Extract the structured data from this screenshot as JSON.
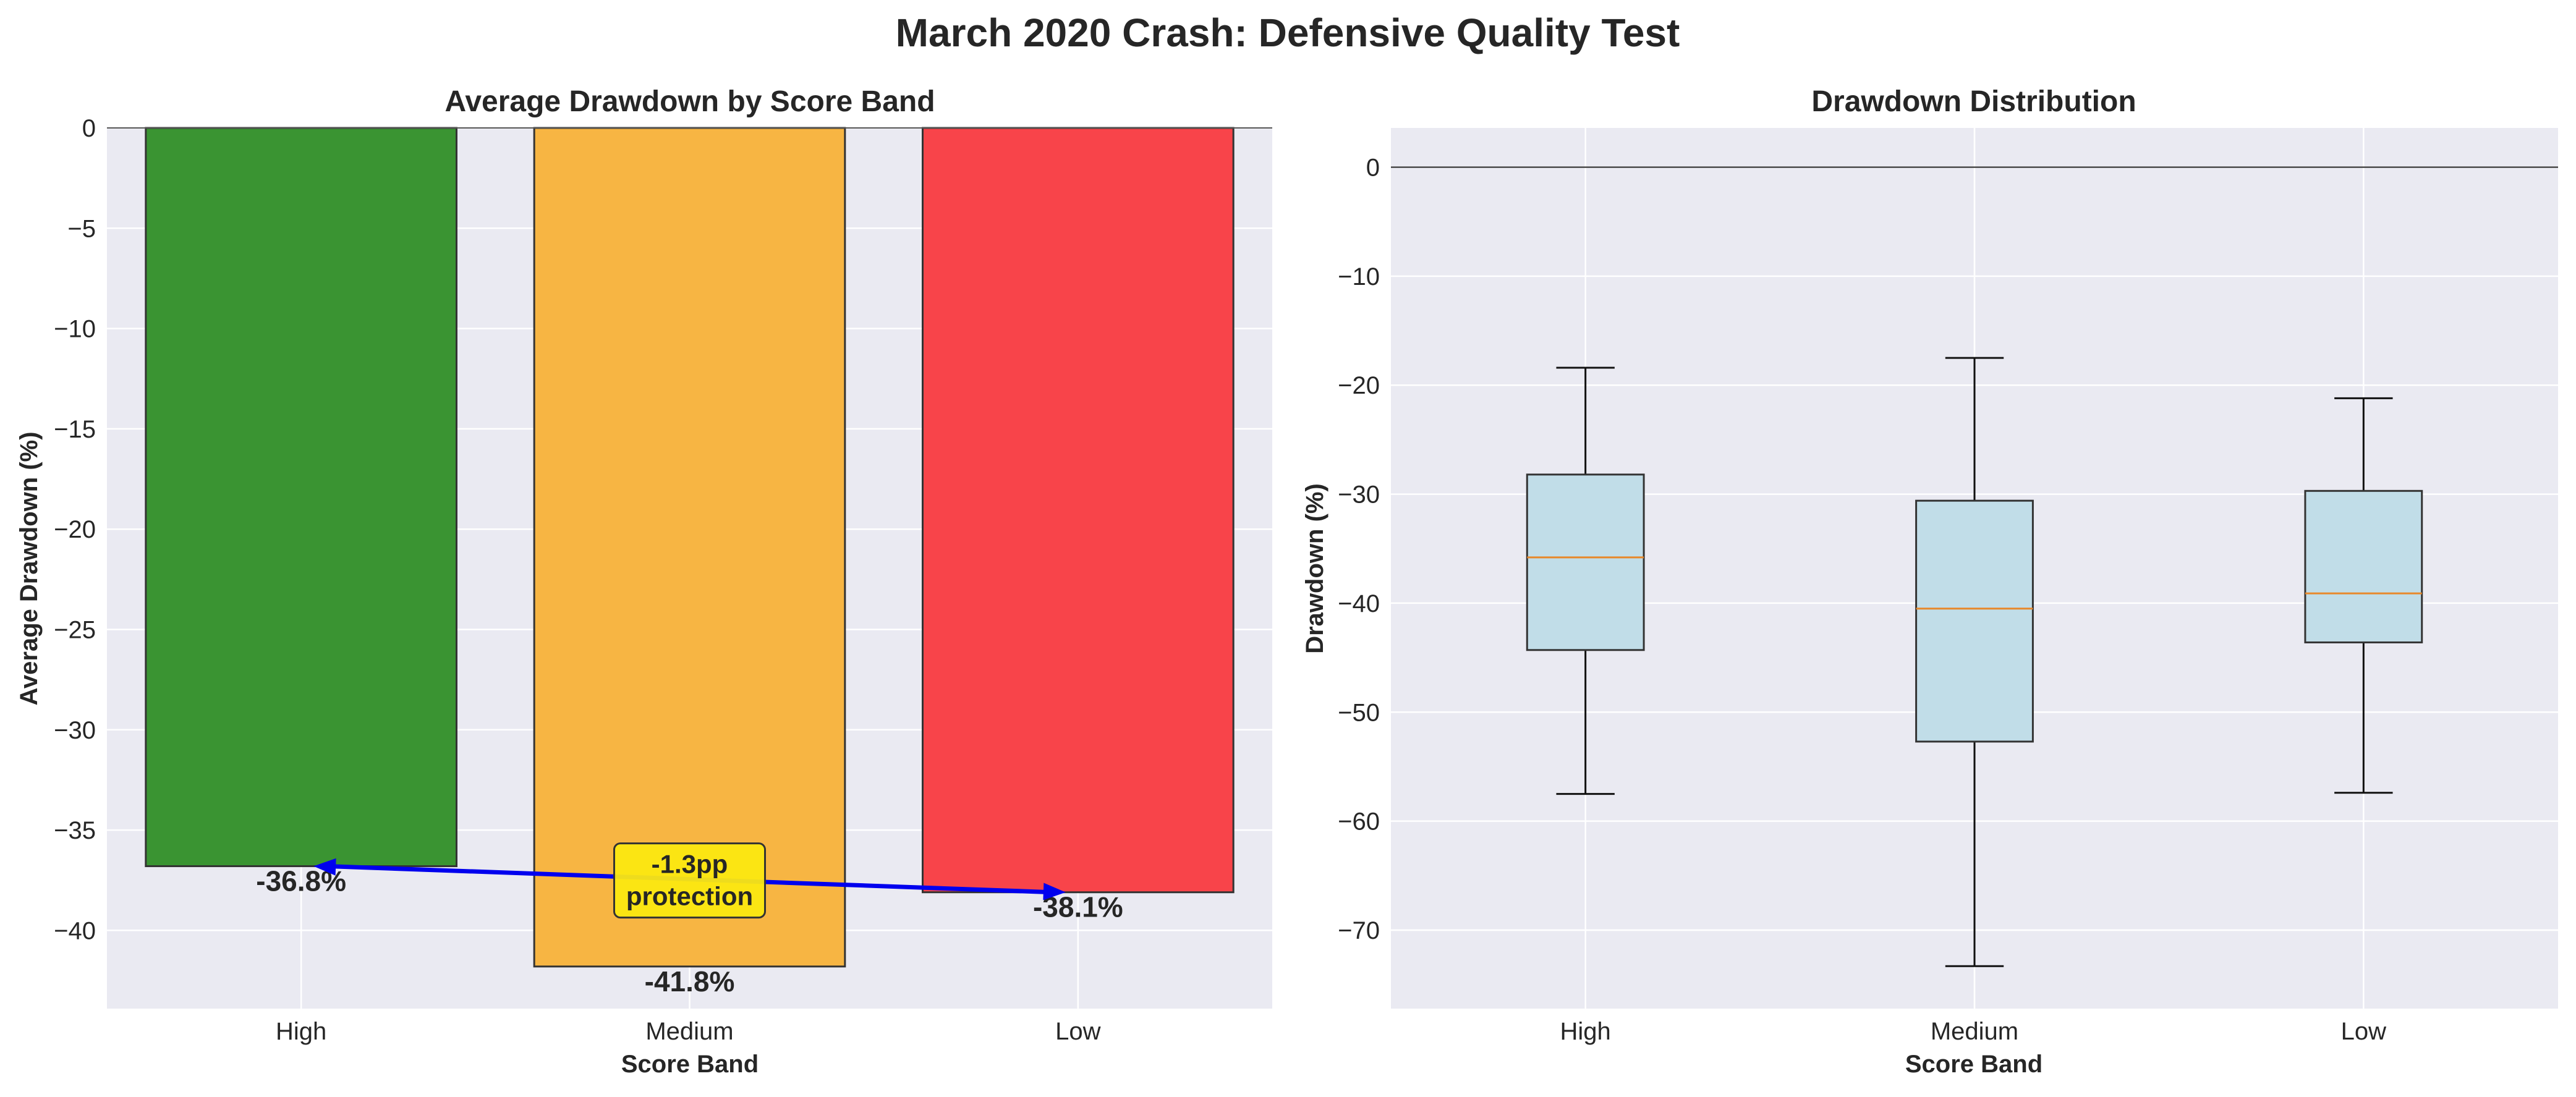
{
  "figure_title": "March 2020 Crash: Defensive Quality Test",
  "colors": {
    "panel_bg": "#eaeaf2",
    "grid": "#ffffff",
    "high": "#3a9432",
    "medium": "#f7b543",
    "low": "#f8444a",
    "box_fill": "#c1dde8",
    "median": "#e8882a",
    "arrow": "#0000ee",
    "annot_bg": "#fbe811"
  },
  "chart_data": [
    {
      "type": "bar",
      "title": "Average Drawdown by Score Band",
      "xlabel": "Score Band",
      "ylabel": "Average Drawdown (%)",
      "categories": [
        "High",
        "Medium",
        "Low"
      ],
      "values": [
        -36.8,
        -41.8,
        -38.1
      ],
      "data_labels": [
        "-36.8%",
        "-41.8%",
        "-38.1%"
      ],
      "ylim": [
        -43.9,
        0
      ],
      "yticks": [
        0,
        -5,
        -10,
        -15,
        -20,
        -25,
        -30,
        -35,
        -40
      ],
      "ytick_labels": [
        "0",
        "−5",
        "−10",
        "−15",
        "−20",
        "−25",
        "−30",
        "−35",
        "−40"
      ],
      "grid": true,
      "annotation": {
        "text_line1": "-1.3pp",
        "text_line2": "protection",
        "arrow_from": "High",
        "arrow_to": "Low"
      }
    },
    {
      "type": "box",
      "title": "Drawdown Distribution",
      "xlabel": "Score Band",
      "ylabel": "Drawdown (%)",
      "categories": [
        "High",
        "Medium",
        "Low"
      ],
      "boxes": [
        {
          "whisker_low": -57.5,
          "q1": -44.3,
          "median": -35.8,
          "q3": -28.2,
          "whisker_high": -18.4
        },
        {
          "whisker_low": -73.3,
          "q1": -52.7,
          "median": -40.5,
          "q3": -30.6,
          "whisker_high": -17.5
        },
        {
          "whisker_low": -57.4,
          "q1": -43.6,
          "median": -39.1,
          "q3": -29.7,
          "whisker_high": -21.2
        }
      ],
      "ylim": [
        -77.2,
        3.6
      ],
      "yticks": [
        0,
        -10,
        -20,
        -30,
        -40,
        -50,
        -60,
        -70
      ],
      "ytick_labels": [
        "0",
        "−10",
        "−20",
        "−30",
        "−40",
        "−50",
        "−60",
        "−70"
      ],
      "grid": true
    }
  ]
}
